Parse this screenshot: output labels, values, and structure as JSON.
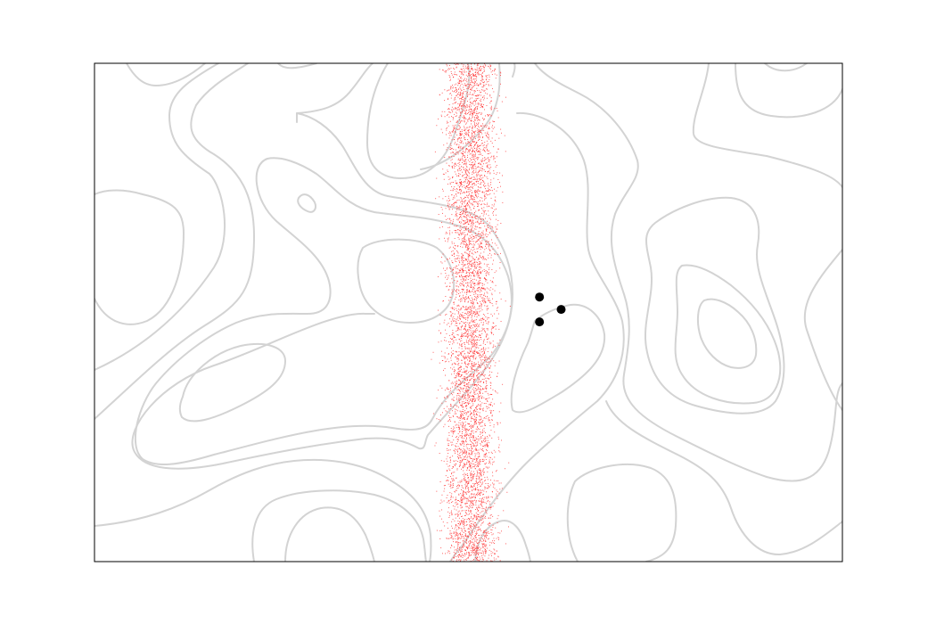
{
  "chart_data": {
    "type": "scatter",
    "title": "",
    "xlabel": "",
    "ylabel": "",
    "axes_visible": false,
    "grid": false,
    "legend": "none",
    "xlim": [
      0,
      10
    ],
    "ylim": [
      0,
      10
    ],
    "colors": {
      "contour": "#d3d3d3",
      "samples": "#ff3b3b",
      "markers": "#000000",
      "frame": "#000000"
    },
    "series": [
      {
        "kind": "random-samples",
        "count": 6000,
        "x_range": [
          4.4,
          5.65
        ],
        "y_range": [
          0,
          10
        ]
      },
      {
        "kind": "markers",
        "points": [
          {
            "x": 5.95,
            "y": 5.31
          },
          {
            "x": 6.24,
            "y": 5.06
          },
          {
            "x": 5.95,
            "y": 4.81
          }
        ]
      }
    ]
  }
}
